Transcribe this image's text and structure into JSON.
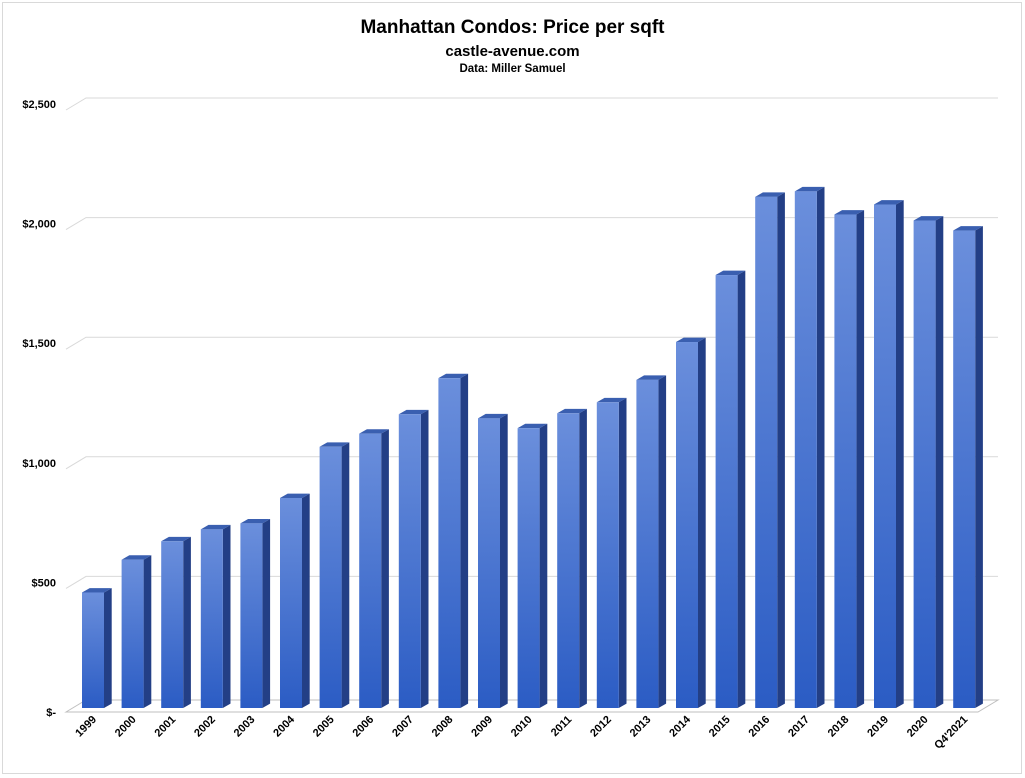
{
  "header": {
    "title": "Manhattan Condos: Price per sqft",
    "subtitle": "castle-avenue.com",
    "source": "Data: Miller Samuel"
  },
  "colors": {
    "bar_front_top": "#6b8fdc",
    "bar_front_bottom": "#2b5cc4",
    "bar_side": "#233f86",
    "bar_top": "#3a5fb0",
    "gridline": "#d9d9d9",
    "floor": "#bfbfbf"
  },
  "chart_data": {
    "type": "bar",
    "style": "3d-column",
    "title": "Manhattan Condos: Price per sqft",
    "xlabel": "",
    "ylabel": "",
    "ylim": [
      0,
      2500
    ],
    "y_ticks": [
      0,
      500,
      1000,
      1500,
      2000,
      2500
    ],
    "y_tick_labels": [
      "$-",
      "$500",
      "$1,000",
      "$1,500",
      "$2,000",
      "$2,500"
    ],
    "grid": true,
    "legend": "none",
    "categories": [
      "1999",
      "2000",
      "2001",
      "2002",
      "2003",
      "2004",
      "2005",
      "2006",
      "2007",
      "2008",
      "2009",
      "2010",
      "2011",
      "2012",
      "2013",
      "2014",
      "2015",
      "2016",
      "2017",
      "2018",
      "2019",
      "2020",
      "Q4'2021"
    ],
    "values": [
      483,
      620,
      697,
      747,
      772,
      878,
      1092,
      1147,
      1228,
      1379,
      1211,
      1170,
      1232,
      1278,
      1372,
      1530,
      1810,
      2137,
      2160,
      2063,
      2105,
      2038,
      1996
    ]
  }
}
